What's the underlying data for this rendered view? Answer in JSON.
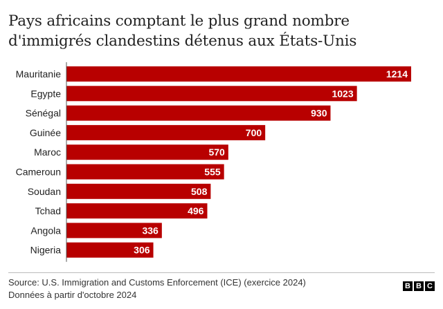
{
  "title": {
    "line1": "Pays africains comptant le plus grand nombre",
    "line2": "d'immigrés clandestins détenus aux États-Unis"
  },
  "source": {
    "line1": "Source: U.S. Immigration and Customs Enforcement (ICE) (exercice 2024)",
    "line2": "Données à partir d'octobre 2024"
  },
  "logo": {
    "letters": [
      "B",
      "B",
      "C"
    ]
  },
  "colors": {
    "bar": "#b80000",
    "axis": "#555555",
    "label_text": "#ffffff"
  },
  "chart_data": {
    "type": "bar",
    "orientation": "horizontal",
    "categories": [
      "Mauritanie",
      "Egypte",
      "Sénégal",
      "Guinée",
      "Maroc",
      "Cameroun",
      "Soudan",
      "Tchad",
      "Angola",
      "Nigeria"
    ],
    "values": [
      1214,
      1023,
      930,
      700,
      570,
      555,
      508,
      496,
      336,
      306
    ],
    "xlim": [
      0,
      1214
    ],
    "grid": false,
    "legend": "none"
  }
}
